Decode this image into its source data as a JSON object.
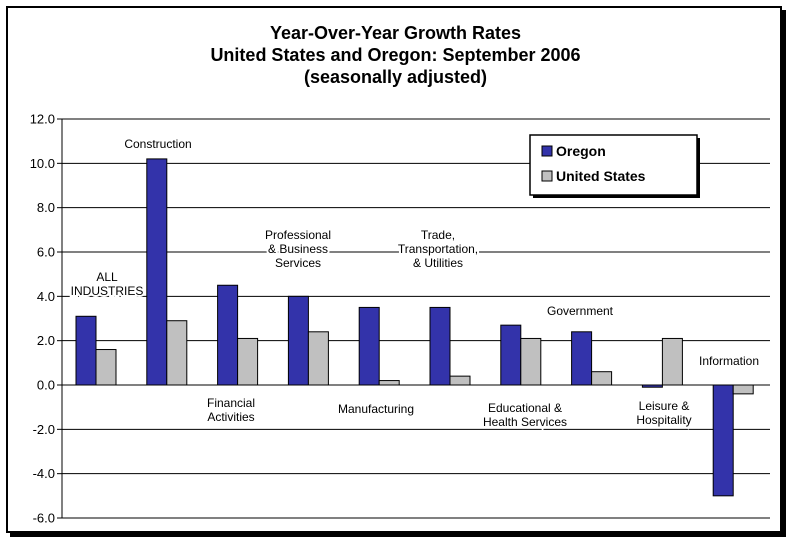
{
  "chart_data": {
    "type": "bar",
    "title": [
      "Year-Over-Year Growth Rates",
      "United States and Oregon: September 2006",
      "(seasonally adjusted)"
    ],
    "xlabel": "",
    "ylabel": "",
    "ylim": [
      -6.0,
      12.0
    ],
    "yticks": [
      "12.0",
      "10.0",
      "8.0",
      "6.0",
      "4.0",
      "2.0",
      "0.0",
      "-2.0",
      "-4.0",
      "-6.0"
    ],
    "grid": true,
    "legend_position": "top-right",
    "categories": [
      [
        "ALL",
        "INDUSTRIES"
      ],
      [
        "Construction"
      ],
      [
        "Financial",
        "Activities"
      ],
      [
        "Professional",
        "& Business",
        "Services"
      ],
      [
        "Manufacturing"
      ],
      [
        "Trade,",
        "Transportation,",
        "& Utilities"
      ],
      [
        "Educational &",
        "Health Services"
      ],
      [
        "Government"
      ],
      [
        "Leisure &",
        "Hospitality"
      ],
      [
        "Information"
      ]
    ],
    "series": [
      {
        "name": "Oregon",
        "color": "#3333aa",
        "values": [
          3.1,
          10.2,
          4.5,
          4.0,
          3.5,
          3.5,
          2.7,
          2.4,
          -0.1,
          -5.0
        ]
      },
      {
        "name": "United States",
        "color": "#c0c0c0",
        "values": [
          1.6,
          2.9,
          2.1,
          2.4,
          0.2,
          0.4,
          2.1,
          0.6,
          2.1,
          -0.4
        ]
      }
    ]
  }
}
